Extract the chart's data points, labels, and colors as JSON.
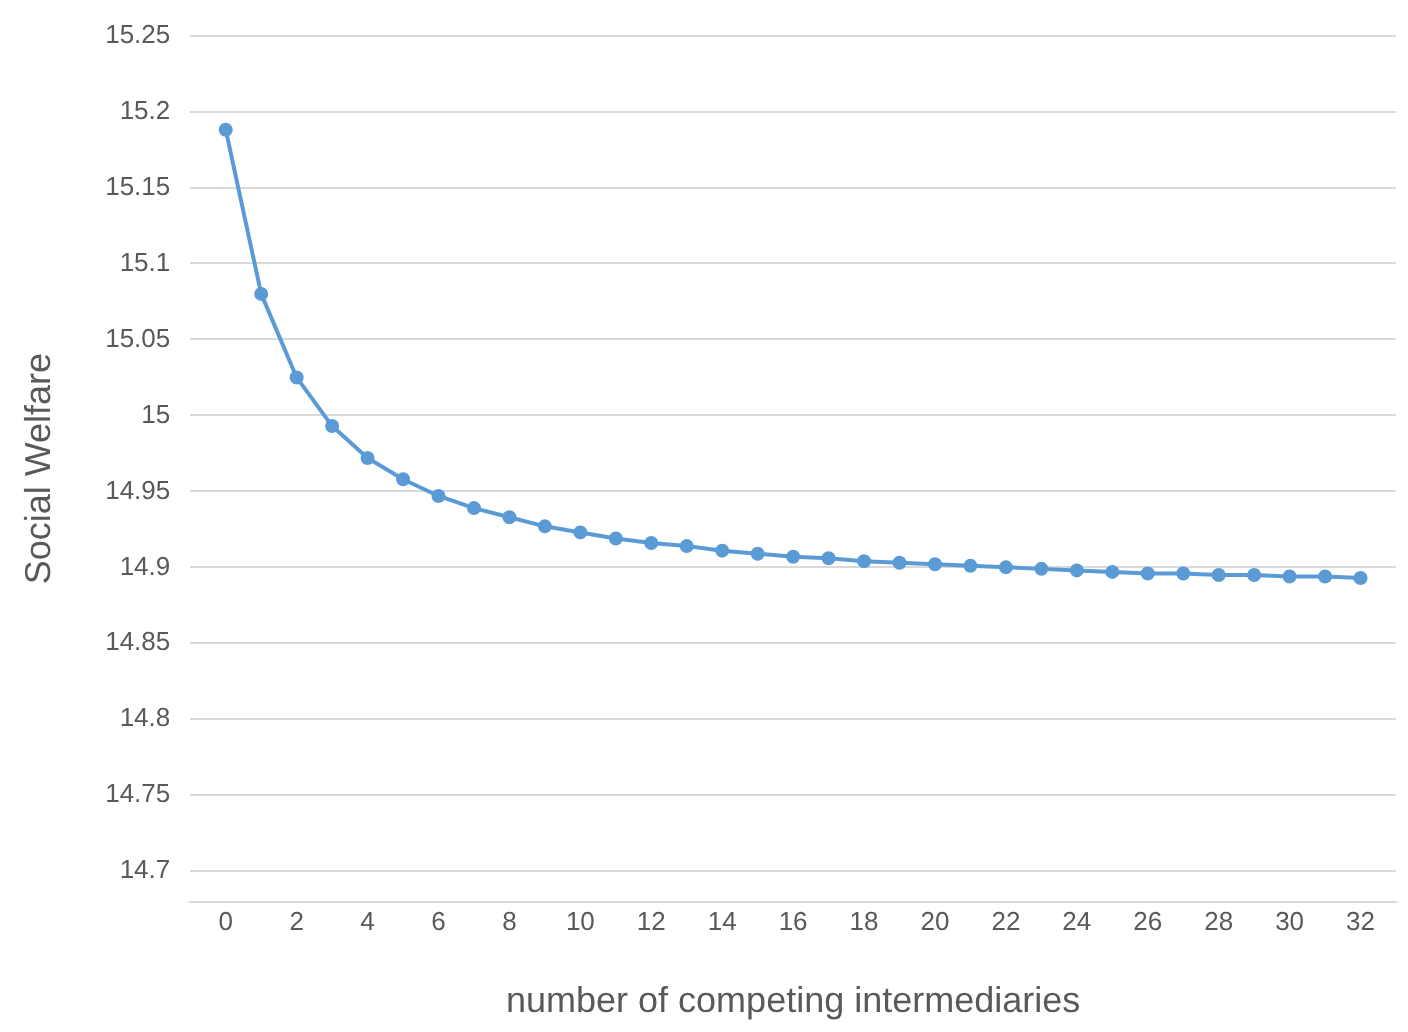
{
  "chart_data": {
    "type": "line",
    "xlabel": "number of competing intermediaries",
    "ylabel": "Social Welfare",
    "x": [
      0,
      1,
      2,
      3,
      4,
      5,
      6,
      7,
      8,
      9,
      10,
      11,
      12,
      13,
      14,
      15,
      16,
      17,
      18,
      19,
      20,
      21,
      22,
      23,
      24,
      25,
      26,
      27,
      28,
      29,
      30,
      31,
      32
    ],
    "series": [
      {
        "color": "#5b9bd5",
        "values": [
          15.188,
          15.08,
          15.025,
          14.993,
          14.972,
          14.958,
          14.947,
          14.939,
          14.933,
          14.927,
          14.923,
          14.919,
          14.916,
          14.914,
          14.911,
          14.909,
          14.907,
          14.906,
          14.904,
          14.903,
          14.902,
          14.901,
          14.9,
          14.899,
          14.898,
          14.897,
          14.896,
          14.896,
          14.895,
          14.895,
          14.894,
          14.894,
          14.893
        ]
      }
    ],
    "xlim": [
      -1,
      33
    ],
    "xticks": [
      0,
      2,
      4,
      6,
      8,
      10,
      12,
      14,
      16,
      18,
      20,
      22,
      24,
      26,
      28,
      30,
      32
    ],
    "ylim": [
      14.68,
      15.25
    ],
    "yticks": [
      14.7,
      14.75,
      14.8,
      14.85,
      14.9,
      14.95,
      15,
      15.05,
      15.1,
      15.15,
      15.2,
      15.25
    ],
    "grid": "y",
    "legend": false,
    "marker": "circle",
    "line_style": "solid"
  }
}
